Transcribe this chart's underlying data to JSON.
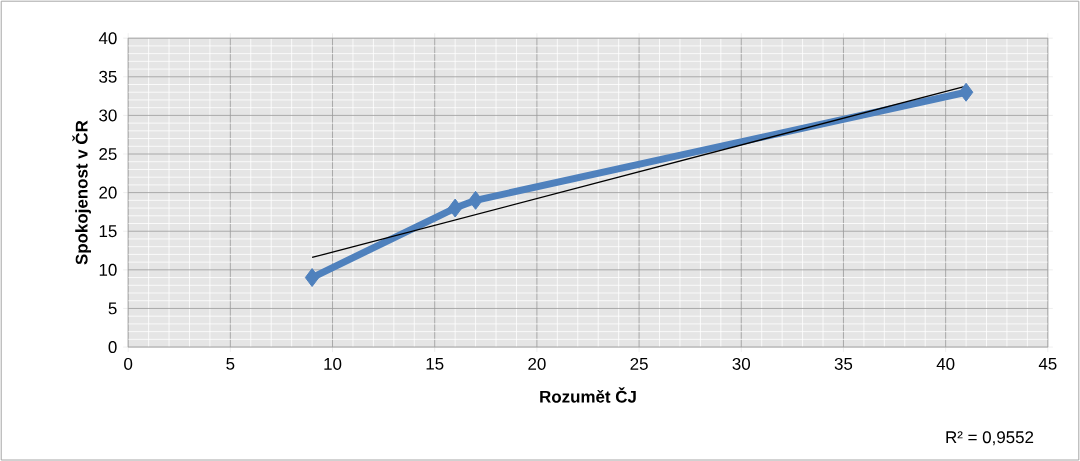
{
  "chart_data": {
    "type": "line",
    "xlabel": "Rozumět ČJ",
    "ylabel": "Spokojenost v ČR",
    "series": [
      {
        "color": "#4f81bd",
        "x": [
          9,
          16,
          17,
          41
        ],
        "values": [
          9,
          18,
          19,
          33
        ],
        "marker": "diamond"
      },
      {
        "type": "line",
        "color": "#000000",
        "x": [
          9,
          41
        ],
        "values": [
          11.6,
          33.8
        ],
        "marker": "none"
      }
    ],
    "xlim": [
      0,
      45
    ],
    "xticks": [
      0,
      5,
      10,
      15,
      20,
      25,
      30,
      35,
      40,
      45
    ],
    "ylim": [
      0,
      40
    ],
    "yticks": [
      0,
      5,
      10,
      15,
      20,
      25,
      30,
      35,
      40
    ],
    "grid": true,
    "annotations": [
      "R² = 0,9552"
    ]
  }
}
